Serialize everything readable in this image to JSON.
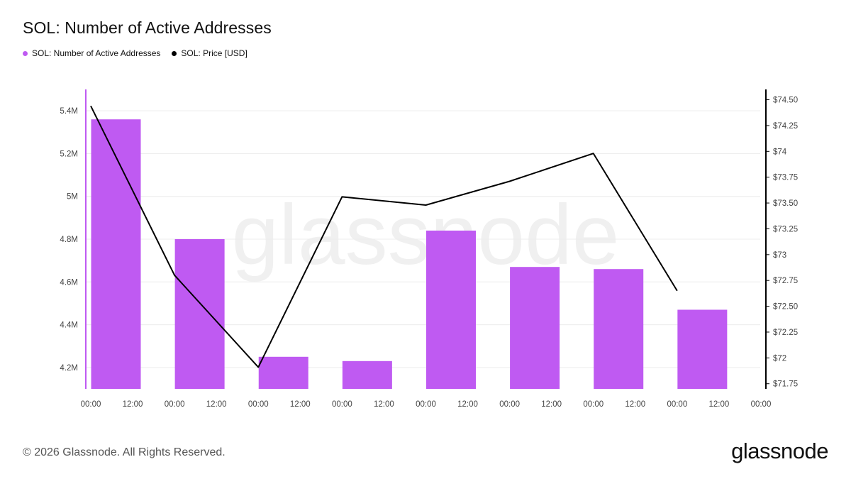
{
  "chart_data": {
    "type": "bar",
    "title": "SOL: Number of Active Addresses",
    "x_tick_labels": [
      "00:00",
      "12:00",
      "00:00",
      "12:00",
      "00:00",
      "12:00",
      "00:00",
      "12:00",
      "00:00",
      "12:00",
      "00:00",
      "12:00",
      "00:00",
      "12:00",
      "00:00",
      "12:00",
      "00:00"
    ],
    "categories": [
      "00:00 (1)",
      "00:00 (2)",
      "00:00 (3)",
      "00:00 (4)",
      "00:00 (5)",
      "00:00 (6)",
      "00:00 (7)",
      "00:00 (8)"
    ],
    "series": [
      {
        "name": "SOL: Number of Active Addresses",
        "type": "bar",
        "axis": "left",
        "color": "#bf5af2",
        "values": [
          5360000,
          4800000,
          4250000,
          4230000,
          4840000,
          4670000,
          4660000,
          4470000
        ]
      },
      {
        "name": "SOL: Price [USD]",
        "type": "line",
        "axis": "right",
        "color": "#000000",
        "values": [
          74.44,
          72.8,
          71.91,
          73.56,
          73.48,
          73.71,
          73.98,
          72.65
        ]
      }
    ],
    "y_left": {
      "ylim": [
        4100000,
        5500000
      ],
      "ticks": [
        4200000,
        4400000,
        4600000,
        4800000,
        5000000,
        5200000,
        5400000
      ],
      "tick_labels": [
        "4.2M",
        "4.4M",
        "4.6M",
        "4.8M",
        "5M",
        "5.2M",
        "5.4M"
      ]
    },
    "y_right": {
      "ylim": [
        71.7,
        74.6
      ],
      "ticks": [
        71.75,
        72,
        72.25,
        72.5,
        72.75,
        73,
        73.25,
        73.5,
        73.75,
        74,
        74.25,
        74.5
      ],
      "tick_labels": [
        "$71.75",
        "$72",
        "$72.25",
        "$72.50",
        "$72.75",
        "$73",
        "$73.25",
        "$73.50",
        "$73.75",
        "$74",
        "$74.25",
        "$74.50"
      ]
    },
    "grid": true,
    "legend_position": "top-left"
  },
  "watermark": "glassnode",
  "footer": {
    "copyright": "© 2026 Glassnode. All Rights Reserved.",
    "logo": "glassnode"
  }
}
